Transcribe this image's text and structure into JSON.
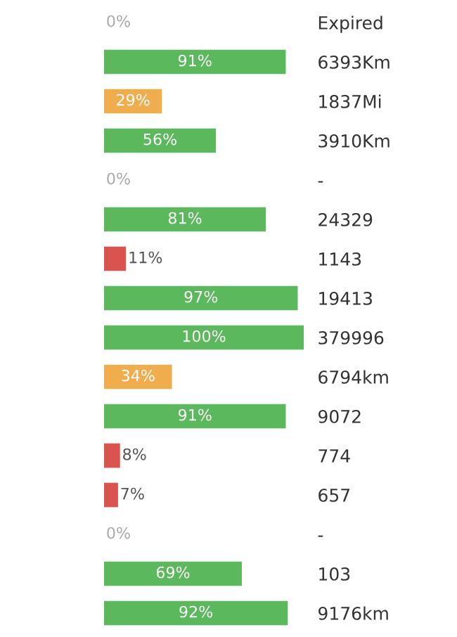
{
  "chart_data": {
    "type": "bar",
    "orientation": "horizontal",
    "categories": [
      "Expired",
      "6393Km",
      "1837Mi",
      "3910Km",
      "-",
      "24329",
      "1143",
      "19413",
      "379996",
      "6794km",
      "9072",
      "774",
      "657",
      "-",
      "103",
      "9176km"
    ],
    "values": [
      0,
      91,
      29,
      56,
      0,
      81,
      11,
      97,
      100,
      34,
      91,
      8,
      7,
      0,
      69,
      92
    ],
    "colors": [
      "#5cb85c",
      "#5cb85c",
      "#f0ad4e",
      "#5cb85c",
      "#5cb85c",
      "#5cb85c",
      "#d9534f",
      "#5cb85c",
      "#5cb85c",
      "#f0ad4e",
      "#5cb85c",
      "#d9534f",
      "#d9534f",
      "#5cb85c",
      "#5cb85c",
      "#5cb85c"
    ],
    "value_labels": [
      "0%",
      "91%",
      "29%",
      "56%",
      "0%",
      "81%",
      "11%",
      "97%",
      "100%",
      "34%",
      "91%",
      "8%",
      "7%",
      "0%",
      "69%",
      "92%"
    ],
    "xlim": [
      0,
      100
    ],
    "tick_labels": "y",
    "grid": false,
    "legend": false
  }
}
